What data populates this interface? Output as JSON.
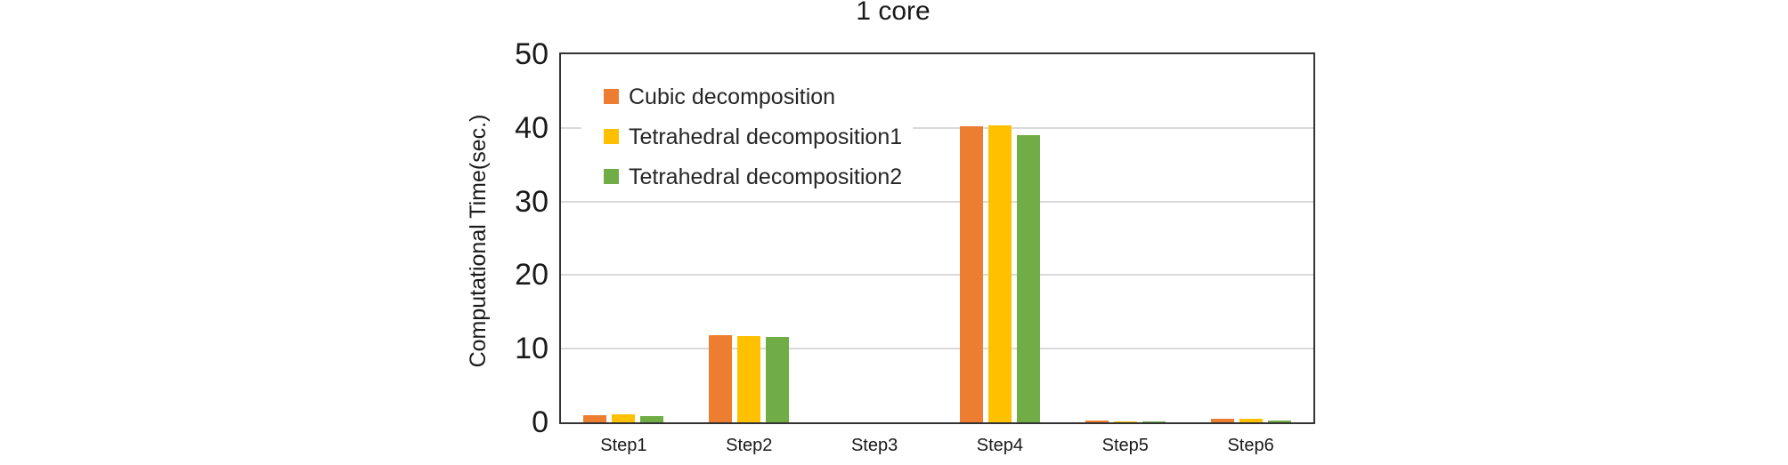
{
  "chart_data": {
    "type": "bar",
    "title": "1 core",
    "ylabel": "Computational Time(sec.)",
    "xlabel": "",
    "categories": [
      "Step1",
      "Step2",
      "Step3",
      "Step4",
      "Step5",
      "Step6"
    ],
    "series": [
      {
        "name": "Cubic decomposition",
        "color": "#ED7D31",
        "values": [
          1.0,
          11.8,
          0,
          40.2,
          0.2,
          0.5
        ]
      },
      {
        "name": "Tetrahedral decomposition1",
        "color": "#FFC000",
        "values": [
          1.1,
          11.7,
          0,
          40.3,
          0.15,
          0.45
        ]
      },
      {
        "name": "Tetrahedral decomposition2",
        "color": "#70AD47",
        "values": [
          0.8,
          11.6,
          0,
          39.0,
          0.15,
          0.3
        ]
      }
    ],
    "ylim": [
      0,
      50
    ],
    "yticks": [
      0,
      10,
      20,
      30,
      40,
      50
    ],
    "grid": true,
    "grid_color": "#D9D9D9",
    "axis_color": "#333333",
    "legend_position": "upper-left-inside"
  }
}
